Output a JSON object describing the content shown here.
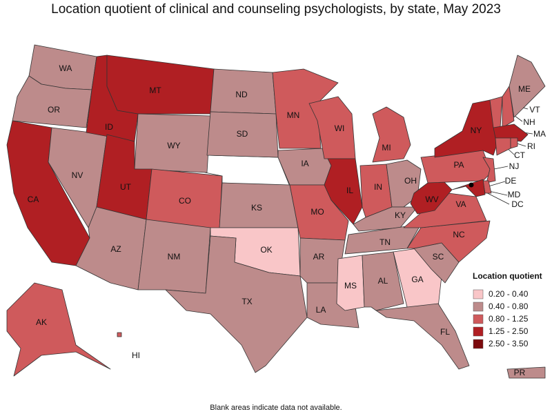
{
  "title": "Location quotient of clinical and counseling psychologists, by state, May 2023",
  "note": "Blank areas indicate data not available.",
  "legend": {
    "title": "Location quotient",
    "bins": [
      {
        "label": "0.20 - 0.40",
        "color": "#f9c6c8"
      },
      {
        "label": "0.40 - 0.80",
        "color": "#bd8b8b"
      },
      {
        "label": "0.80 - 1.25",
        "color": "#cf5a5c"
      },
      {
        "label": "1.25 - 2.50",
        "color": "#b01f23"
      },
      {
        "label": "2.50 - 3.50",
        "color": "#7c0a0d"
      }
    ]
  },
  "states": [
    {
      "label": "WA",
      "bin": 1
    },
    {
      "label": "OR",
      "bin": 1
    },
    {
      "label": "CA",
      "bin": 3
    },
    {
      "label": "NV",
      "bin": 1
    },
    {
      "label": "ID",
      "bin": 3
    },
    {
      "label": "MT",
      "bin": 3
    },
    {
      "label": "WY",
      "bin": 1
    },
    {
      "label": "UT",
      "bin": 3
    },
    {
      "label": "CO",
      "bin": 2
    },
    {
      "label": "AZ",
      "bin": 1
    },
    {
      "label": "NM",
      "bin": 1
    },
    {
      "label": "ND",
      "bin": 1
    },
    {
      "label": "SD",
      "bin": 1
    },
    {
      "label": "KS",
      "bin": 1
    },
    {
      "label": "OK",
      "bin": 0
    },
    {
      "label": "TX",
      "bin": 1
    },
    {
      "label": "MN",
      "bin": 2
    },
    {
      "label": "IA",
      "bin": 1
    },
    {
      "label": "MO",
      "bin": 2
    },
    {
      "label": "AR",
      "bin": 1
    },
    {
      "label": "LA",
      "bin": 1
    },
    {
      "label": "WI",
      "bin": 2
    },
    {
      "label": "IL",
      "bin": 3
    },
    {
      "label": "MI",
      "bin": 2
    },
    {
      "label": "IN",
      "bin": 2
    },
    {
      "label": "OH",
      "bin": 1
    },
    {
      "label": "KY",
      "bin": 1
    },
    {
      "label": "TN",
      "bin": 1
    },
    {
      "label": "MS",
      "bin": 0
    },
    {
      "label": "AL",
      "bin": 1
    },
    {
      "label": "GA",
      "bin": 0
    },
    {
      "label": "FL",
      "bin": 1
    },
    {
      "label": "SC",
      "bin": 1
    },
    {
      "label": "NC",
      "bin": 2
    },
    {
      "label": "VA",
      "bin": 2
    },
    {
      "label": "WV",
      "bin": 3
    },
    {
      "label": "PA",
      "bin": 2
    },
    {
      "label": "NY",
      "bin": 3
    },
    {
      "label": "VT",
      "bin": 2
    },
    {
      "label": "NH",
      "bin": 2
    },
    {
      "label": "ME",
      "bin": 1
    },
    {
      "label": "MA",
      "bin": 3
    },
    {
      "label": "CT",
      "bin": 2
    },
    {
      "label": "RI",
      "bin": 2
    },
    {
      "label": "NJ",
      "bin": 2
    },
    {
      "label": "DE",
      "bin": 2
    },
    {
      "label": "MD",
      "bin": 3
    },
    {
      "label": "DC",
      "bin": 4
    },
    {
      "label": "AK",
      "bin": 2
    },
    {
      "label": "HI",
      "bin": 2
    },
    {
      "label": "PR",
      "bin": 1
    }
  ]
}
